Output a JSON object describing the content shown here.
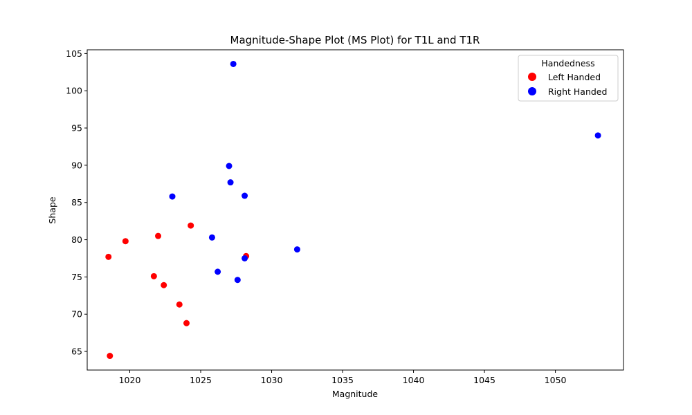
{
  "chart_data": {
    "type": "scatter",
    "title": "Magnitude-Shape Plot (MS Plot) for T1L and T1R",
    "xlabel": "Magnitude",
    "ylabel": "Shape",
    "xlim": [
      1017.0,
      1054.8
    ],
    "ylim": [
      62.5,
      105.5
    ],
    "xticks": [
      1020,
      1025,
      1030,
      1035,
      1040,
      1045,
      1050
    ],
    "yticks": [
      65,
      70,
      75,
      80,
      85,
      90,
      95,
      100,
      105
    ],
    "grid": false,
    "legend": {
      "title": "Handedness",
      "placement": "top-right"
    },
    "series": [
      {
        "name": "Left Handed",
        "color": "#ff0000",
        "points": [
          {
            "x": 1018.5,
            "y": 77.7
          },
          {
            "x": 1018.6,
            "y": 64.4
          },
          {
            "x": 1019.7,
            "y": 79.8
          },
          {
            "x": 1021.7,
            "y": 75.1
          },
          {
            "x": 1022.0,
            "y": 80.5
          },
          {
            "x": 1022.4,
            "y": 73.9
          },
          {
            "x": 1023.5,
            "y": 71.3
          },
          {
            "x": 1024.0,
            "y": 68.8
          },
          {
            "x": 1024.3,
            "y": 81.9
          },
          {
            "x": 1028.2,
            "y": 77.8
          }
        ]
      },
      {
        "name": "Right Handed",
        "color": "#0000ff",
        "points": [
          {
            "x": 1023.0,
            "y": 85.8
          },
          {
            "x": 1025.8,
            "y": 80.3
          },
          {
            "x": 1026.2,
            "y": 75.7
          },
          {
            "x": 1027.0,
            "y": 89.9
          },
          {
            "x": 1027.1,
            "y": 87.7
          },
          {
            "x": 1027.3,
            "y": 103.6
          },
          {
            "x": 1027.6,
            "y": 74.6
          },
          {
            "x": 1028.1,
            "y": 85.9
          },
          {
            "x": 1028.1,
            "y": 77.5
          },
          {
            "x": 1031.8,
            "y": 78.7
          },
          {
            "x": 1053.0,
            "y": 94.0
          }
        ]
      }
    ]
  }
}
